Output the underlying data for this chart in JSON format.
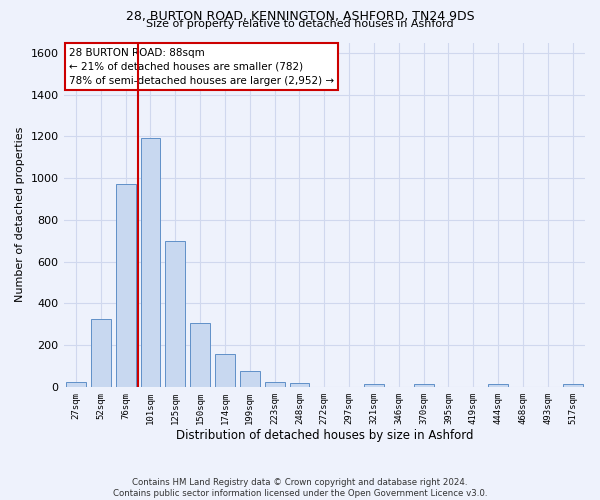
{
  "title1": "28, BURTON ROAD, KENNINGTON, ASHFORD, TN24 9DS",
  "title2": "Size of property relative to detached houses in Ashford",
  "xlabel": "Distribution of detached houses by size in Ashford",
  "ylabel": "Number of detached properties",
  "categories": [
    "27sqm",
    "52sqm",
    "76sqm",
    "101sqm",
    "125sqm",
    "150sqm",
    "174sqm",
    "199sqm",
    "223sqm",
    "248sqm",
    "272sqm",
    "297sqm",
    "321sqm",
    "346sqm",
    "370sqm",
    "395sqm",
    "419sqm",
    "444sqm",
    "468sqm",
    "493sqm",
    "517sqm"
  ],
  "values": [
    25,
    325,
    970,
    1190,
    700,
    305,
    155,
    75,
    25,
    18,
    0,
    0,
    12,
    0,
    12,
    0,
    0,
    12,
    0,
    0,
    12
  ],
  "bar_color": "#c8d8f0",
  "bar_edge_color": "#6090c8",
  "grid_color": "#d0d8ee",
  "vline_color": "#cc0000",
  "vline_x_index": 2.5,
  "annotation_line1": "28 BURTON ROAD: 88sqm",
  "annotation_line2": "← 21% of detached houses are smaller (782)",
  "annotation_line3": "78% of semi-detached houses are larger (2,952) →",
  "annotation_box_color": "white",
  "annotation_box_edge_color": "#cc0000",
  "footer_text": "Contains HM Land Registry data © Crown copyright and database right 2024.\nContains public sector information licensed under the Open Government Licence v3.0.",
  "ylim": [
    0,
    1650
  ],
  "yticks": [
    0,
    200,
    400,
    600,
    800,
    1000,
    1200,
    1400,
    1600
  ],
  "bg_color": "#eef2fc"
}
